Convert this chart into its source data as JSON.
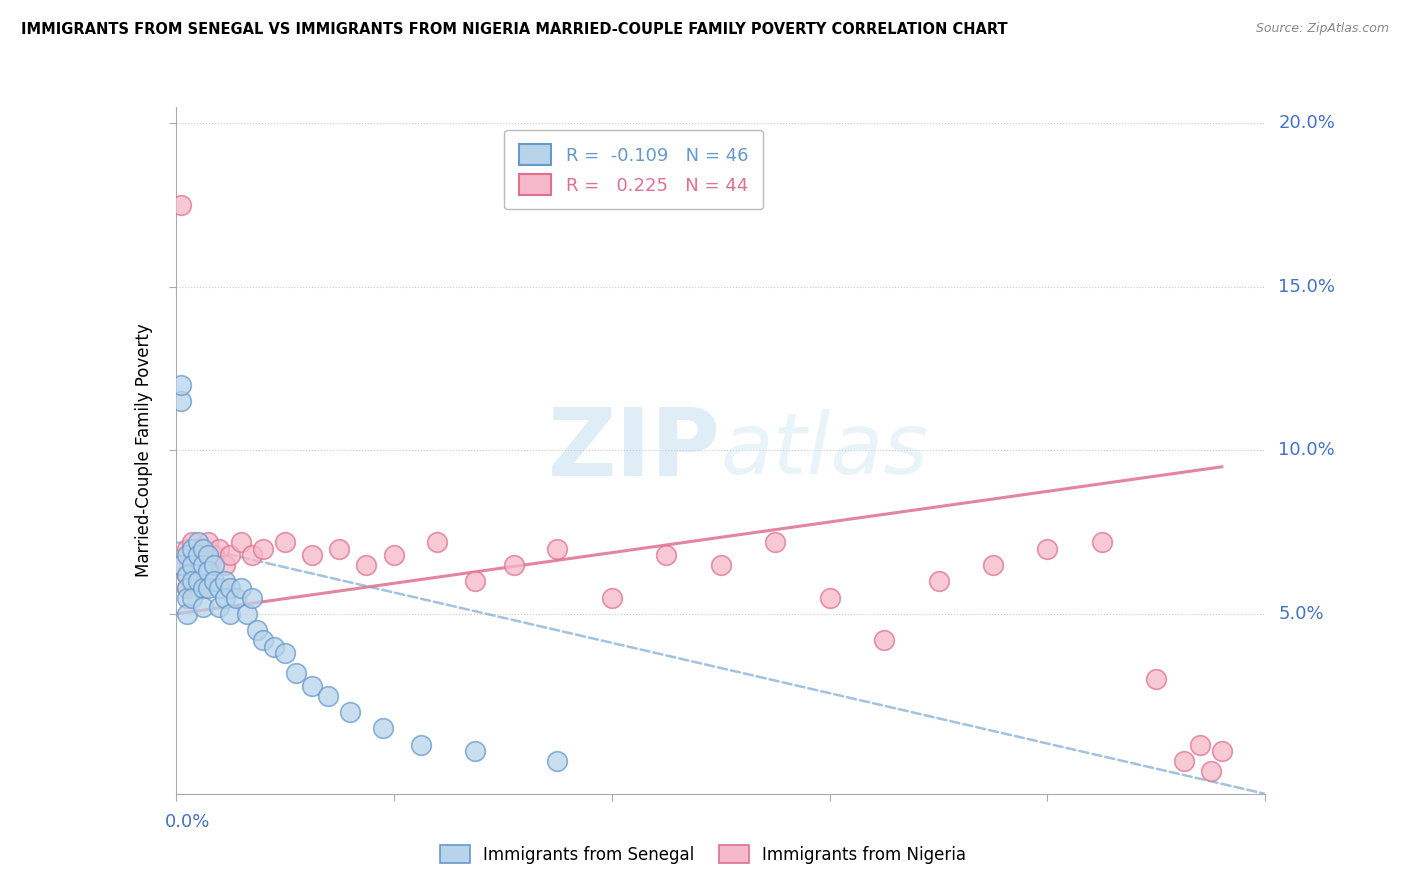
{
  "title": "IMMIGRANTS FROM SENEGAL VS IMMIGRANTS FROM NIGERIA MARRIED-COUPLE FAMILY POVERTY CORRELATION CHART",
  "source": "Source: ZipAtlas.com",
  "ylabel": "Married-Couple Family Poverty",
  "legend_senegal": "R =  -0.109   N = 46",
  "legend_nigeria": "R =   0.225   N = 44",
  "senegal_fill": "#b8d4ea",
  "senegal_edge": "#6699cc",
  "nigeria_fill": "#f5b8c8",
  "nigeria_edge": "#e07090",
  "senegal_line_color": "#6699cc",
  "nigeria_line_color": "#e07090",
  "watermark_color": "#cce4f0",
  "xlim": [
    0.0,
    0.2
  ],
  "ylim": [
    -0.005,
    0.205
  ],
  "senegal_x": [
    0.001,
    0.001,
    0.001,
    0.002,
    0.002,
    0.002,
    0.002,
    0.002,
    0.003,
    0.003,
    0.003,
    0.003,
    0.004,
    0.004,
    0.004,
    0.005,
    0.005,
    0.005,
    0.005,
    0.006,
    0.006,
    0.006,
    0.007,
    0.007,
    0.008,
    0.008,
    0.009,
    0.009,
    0.01,
    0.01,
    0.011,
    0.012,
    0.013,
    0.014,
    0.015,
    0.016,
    0.018,
    0.02,
    0.022,
    0.025,
    0.028,
    0.032,
    0.038,
    0.045,
    0.055,
    0.07
  ],
  "senegal_y": [
    0.115,
    0.12,
    0.065,
    0.068,
    0.062,
    0.058,
    0.055,
    0.05,
    0.07,
    0.065,
    0.06,
    0.055,
    0.072,
    0.068,
    0.06,
    0.07,
    0.065,
    0.058,
    0.052,
    0.068,
    0.063,
    0.058,
    0.065,
    0.06,
    0.058,
    0.052,
    0.06,
    0.055,
    0.058,
    0.05,
    0.055,
    0.058,
    0.05,
    0.055,
    0.045,
    0.042,
    0.04,
    0.038,
    0.032,
    0.028,
    0.025,
    0.02,
    0.015,
    0.01,
    0.008,
    0.005
  ],
  "nigeria_x": [
    0.001,
    0.001,
    0.002,
    0.002,
    0.002,
    0.003,
    0.003,
    0.004,
    0.004,
    0.005,
    0.005,
    0.006,
    0.006,
    0.007,
    0.008,
    0.009,
    0.01,
    0.012,
    0.014,
    0.016,
    0.02,
    0.025,
    0.03,
    0.035,
    0.04,
    0.048,
    0.055,
    0.062,
    0.07,
    0.08,
    0.09,
    0.1,
    0.11,
    0.12,
    0.13,
    0.14,
    0.15,
    0.16,
    0.17,
    0.18,
    0.185,
    0.188,
    0.19,
    0.192
  ],
  "nigeria_y": [
    0.175,
    0.065,
    0.07,
    0.062,
    0.058,
    0.072,
    0.065,
    0.07,
    0.06,
    0.068,
    0.058,
    0.072,
    0.065,
    0.068,
    0.07,
    0.065,
    0.068,
    0.072,
    0.068,
    0.07,
    0.072,
    0.068,
    0.07,
    0.065,
    0.068,
    0.072,
    0.06,
    0.065,
    0.07,
    0.055,
    0.068,
    0.065,
    0.072,
    0.055,
    0.042,
    0.06,
    0.065,
    0.07,
    0.072,
    0.03,
    0.005,
    0.01,
    0.002,
    0.008
  ],
  "sen_line_x0": 0.0,
  "sen_line_x1": 0.2,
  "sen_line_y0": 0.072,
  "sen_line_y1": -0.005,
  "nig_line_x0": 0.0,
  "nig_line_x1": 0.192,
  "nig_line_y0": 0.05,
  "nig_line_y1": 0.095,
  "ytick_vals": [
    0.05,
    0.1,
    0.15,
    0.2
  ],
  "xtick_vals": [
    0.0,
    0.04,
    0.08,
    0.12,
    0.16,
    0.2
  ]
}
